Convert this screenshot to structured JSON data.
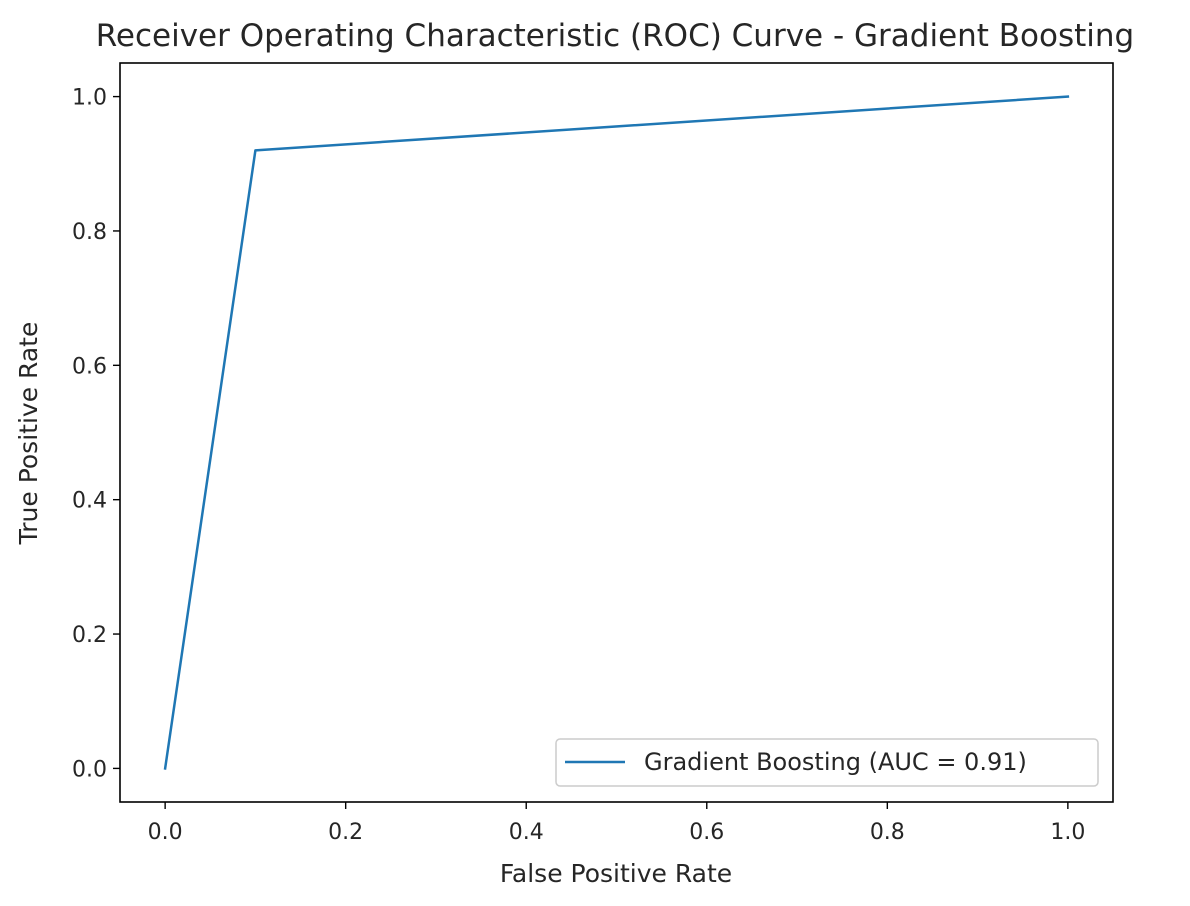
{
  "chart_data": {
    "type": "line",
    "title": "Receiver Operating Characteristic (ROC) Curve - Gradient Boosting",
    "xlabel": "False Positive Rate",
    "ylabel": "True Positive Rate",
    "xlim": [
      -0.05,
      1.05
    ],
    "ylim": [
      -0.05,
      1.05
    ],
    "xticks": [
      0.0,
      0.2,
      0.4,
      0.6,
      0.8,
      1.0
    ],
    "xtick_labels": [
      "0.0",
      "0.2",
      "0.4",
      "0.6",
      "0.8",
      "1.0"
    ],
    "yticks": [
      0.0,
      0.2,
      0.4,
      0.6,
      0.8,
      1.0
    ],
    "ytick_labels": [
      "0.0",
      "0.2",
      "0.4",
      "0.6",
      "0.8",
      "1.0"
    ],
    "grid": false,
    "legend_position": "lower-right",
    "series": [
      {
        "name": "Gradient Boosting (AUC = 0.91)",
        "color": "#1f77b4",
        "x": [
          0.0,
          0.1,
          1.0
        ],
        "y": [
          0.0,
          0.92,
          1.0
        ]
      }
    ]
  }
}
